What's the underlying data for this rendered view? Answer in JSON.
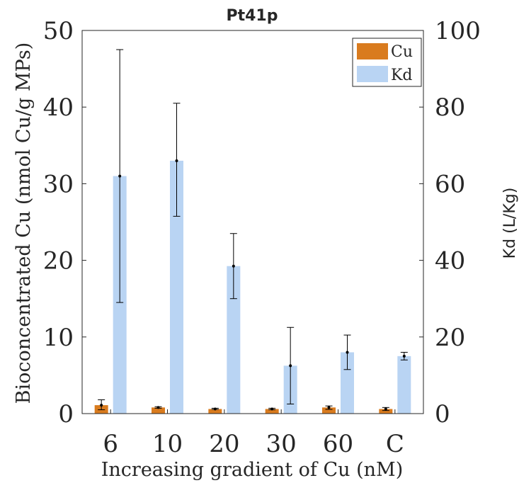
{
  "chart_data": {
    "type": "bar",
    "title": "Pt41p",
    "xlabel": "Increasing gradient of Cu (nM)",
    "ylabel_left": "Bioconcentrated Cu (nmol Cu/g MPs)",
    "ylabel_right": "Kd (L/Kg)",
    "categories": [
      "6",
      "10",
      "20",
      "30",
      "60",
      "C"
    ],
    "ylim_left": [
      0,
      50
    ],
    "ylim_right": [
      0,
      100
    ],
    "yticks_left": [
      "0",
      "10",
      "20",
      "30",
      "40",
      "50"
    ],
    "yticks_right": [
      "0",
      "20",
      "40",
      "60",
      "80",
      "100"
    ],
    "legend_position": "top-right",
    "series": [
      {
        "name": "Cu",
        "axis": "left",
        "color": "#D97B1E",
        "values": [
          1.1,
          0.8,
          0.6,
          0.6,
          0.8,
          0.6
        ],
        "err_low": [
          0.5,
          0.7,
          0.55,
          0.5,
          0.55,
          0.4
        ],
        "err_high": [
          1.8,
          0.9,
          0.7,
          0.7,
          1.0,
          0.8
        ]
      },
      {
        "name": "Kd",
        "axis": "right",
        "color": "#B9D4F3",
        "values": [
          62,
          66,
          38.5,
          12.5,
          16,
          15
        ],
        "err_low": [
          29,
          51.5,
          30,
          2.5,
          11.5,
          14
        ],
        "err_high": [
          95,
          81,
          47,
          22.5,
          20.5,
          16
        ]
      }
    ]
  }
}
